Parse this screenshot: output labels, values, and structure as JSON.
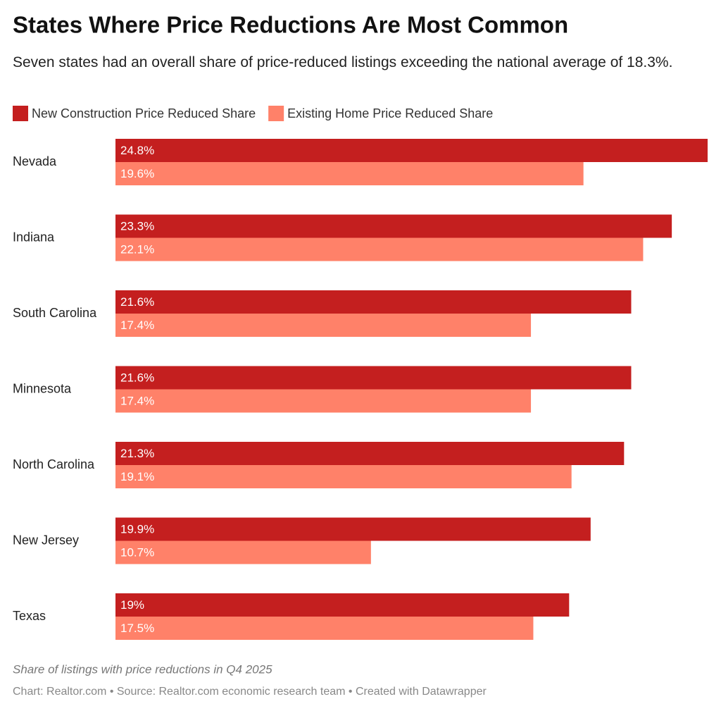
{
  "chart_data": {
    "type": "bar",
    "orientation": "horizontal",
    "title": "States Where Price Reductions Are Most Common",
    "subtitle": "Seven states had an overall share of price-reduced listings exceeding the national average of 18.3%.",
    "categories": [
      "Nevada",
      "Indiana",
      "South Carolina",
      "Minnesota",
      "North Carolina",
      "New Jersey",
      "Texas"
    ],
    "series": [
      {
        "name": "New Construction Price Reduced Share",
        "color": "#c41f1f",
        "values": [
          24.8,
          23.3,
          21.6,
          21.6,
          21.3,
          19.9,
          19
        ],
        "value_labels": [
          "24.8%",
          "23.3%",
          "21.6%",
          "21.6%",
          "21.3%",
          "19.9%",
          "19%"
        ]
      },
      {
        "name": "Existing Home Price Reduced Share",
        "color": "#ff8169",
        "values": [
          19.6,
          22.1,
          17.4,
          17.4,
          19.1,
          10.7,
          17.5
        ],
        "value_labels": [
          "19.6%",
          "22.1%",
          "17.4%",
          "17.4%",
          "19.1%",
          "10.7%",
          "17.5%"
        ]
      }
    ],
    "legend": "top-left",
    "note": "Share of listings with price reductions in Q4 2025",
    "source": "Chart: Realtor.com • Source: Realtor.com economic research team • Created with Datawrapper"
  }
}
